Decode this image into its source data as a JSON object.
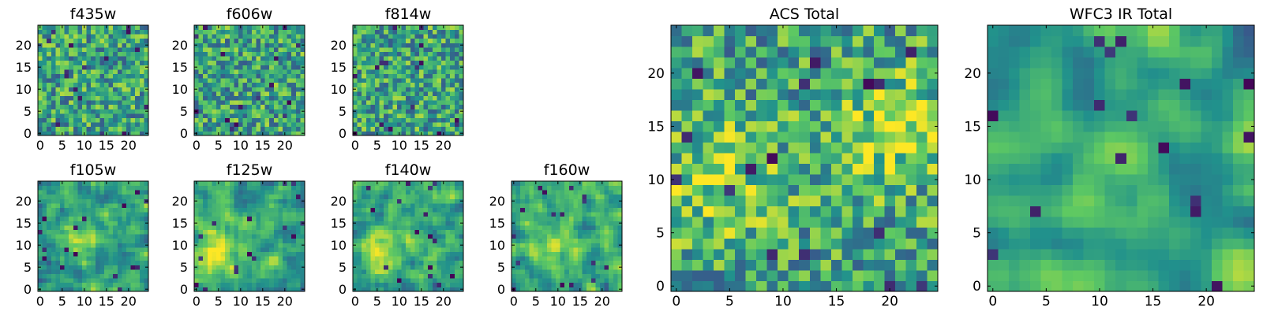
{
  "figure": {
    "colormap": [
      "#440154",
      "#3b528b",
      "#21918c",
      "#5ec962",
      "#fde725"
    ]
  },
  "chart_data": [
    {
      "type": "heatmap",
      "title": "f435w",
      "nx": 25,
      "ny": 25,
      "xlim": [
        -0.5,
        24.5
      ],
      "ylim": [
        -0.5,
        24.5
      ],
      "xticks": [
        0,
        5,
        10,
        15,
        20
      ],
      "yticks": [
        0,
        5,
        10,
        15,
        20
      ],
      "grid": false,
      "seed": 11,
      "smooth": 0,
      "warm": []
    },
    {
      "type": "heatmap",
      "title": "f606w",
      "nx": 25,
      "ny": 25,
      "xlim": [
        -0.5,
        24.5
      ],
      "ylim": [
        -0.5,
        24.5
      ],
      "xticks": [
        0,
        5,
        10,
        15,
        20
      ],
      "yticks": [
        0,
        5,
        10,
        15,
        20
      ],
      "grid": false,
      "seed": 23,
      "smooth": 0,
      "warm": []
    },
    {
      "type": "heatmap",
      "title": "f814w",
      "nx": 25,
      "ny": 25,
      "xlim": [
        -0.5,
        24.5
      ],
      "ylim": [
        -0.5,
        24.5
      ],
      "xticks": [
        0,
        5,
        10,
        15,
        20
      ],
      "yticks": [
        0,
        5,
        10,
        15,
        20
      ],
      "grid": false,
      "seed": 37,
      "smooth": 0,
      "warm": []
    },
    {
      "type": "heatmap",
      "title": "f105w",
      "nx": 25,
      "ny": 25,
      "xlim": [
        -0.5,
        24.5
      ],
      "ylim": [
        -0.5,
        24.5
      ],
      "xticks": [
        0,
        5,
        10,
        15,
        20
      ],
      "yticks": [
        0,
        5,
        10,
        15,
        20
      ],
      "grid": false,
      "seed": 41,
      "smooth": 1,
      "warm": [
        [
          10,
          12
        ]
      ]
    },
    {
      "type": "heatmap",
      "title": "f125w",
      "nx": 25,
      "ny": 25,
      "xlim": [
        -0.5,
        24.5
      ],
      "ylim": [
        -0.5,
        24.5
      ],
      "xticks": [
        0,
        5,
        10,
        15,
        20
      ],
      "yticks": [
        0,
        5,
        10,
        15,
        20
      ],
      "grid": false,
      "seed": 53,
      "smooth": 1,
      "warm": [
        [
          5,
          8
        ]
      ]
    },
    {
      "type": "heatmap",
      "title": "f140w",
      "nx": 25,
      "ny": 25,
      "xlim": [
        -0.5,
        24.5
      ],
      "ylim": [
        -0.5,
        24.5
      ],
      "xticks": [
        0,
        5,
        10,
        15,
        20
      ],
      "yticks": [
        0,
        5,
        10,
        15,
        20
      ],
      "grid": false,
      "seed": 67,
      "smooth": 1,
      "warm": [
        [
          6,
          11
        ]
      ]
    },
    {
      "type": "heatmap",
      "title": "f160w",
      "nx": 25,
      "ny": 25,
      "xlim": [
        -0.5,
        24.5
      ],
      "ylim": [
        -0.5,
        24.5
      ],
      "xticks": [
        0,
        5,
        10,
        15,
        20
      ],
      "yticks": [
        0,
        5,
        10,
        15,
        20
      ],
      "grid": false,
      "seed": 79,
      "smooth": 1,
      "warm": [
        [
          9,
          10
        ]
      ]
    },
    {
      "type": "heatmap",
      "title": "ACS Total",
      "nx": 25,
      "ny": 25,
      "xlim": [
        -0.5,
        24.5
      ],
      "ylim": [
        -0.5,
        24.5
      ],
      "xticks": [
        0,
        5,
        10,
        15,
        20
      ],
      "yticks": [
        0,
        5,
        10,
        15,
        20
      ],
      "grid": false,
      "seed": 97,
      "smooth": 0,
      "warm": [
        [
          4,
          10
        ],
        [
          20,
          15
        ]
      ]
    },
    {
      "type": "heatmap",
      "title": "WFC3 IR Total",
      "nx": 25,
      "ny": 25,
      "xlim": [
        -0.5,
        24.5
      ],
      "ylim": [
        -0.5,
        24.5
      ],
      "xticks": [
        0,
        5,
        10,
        15,
        20
      ],
      "yticks": [
        0,
        5,
        10,
        15,
        20
      ],
      "grid": false,
      "seed": 103,
      "smooth": 2,
      "warm": [
        [
          10,
          11
        ]
      ]
    }
  ]
}
